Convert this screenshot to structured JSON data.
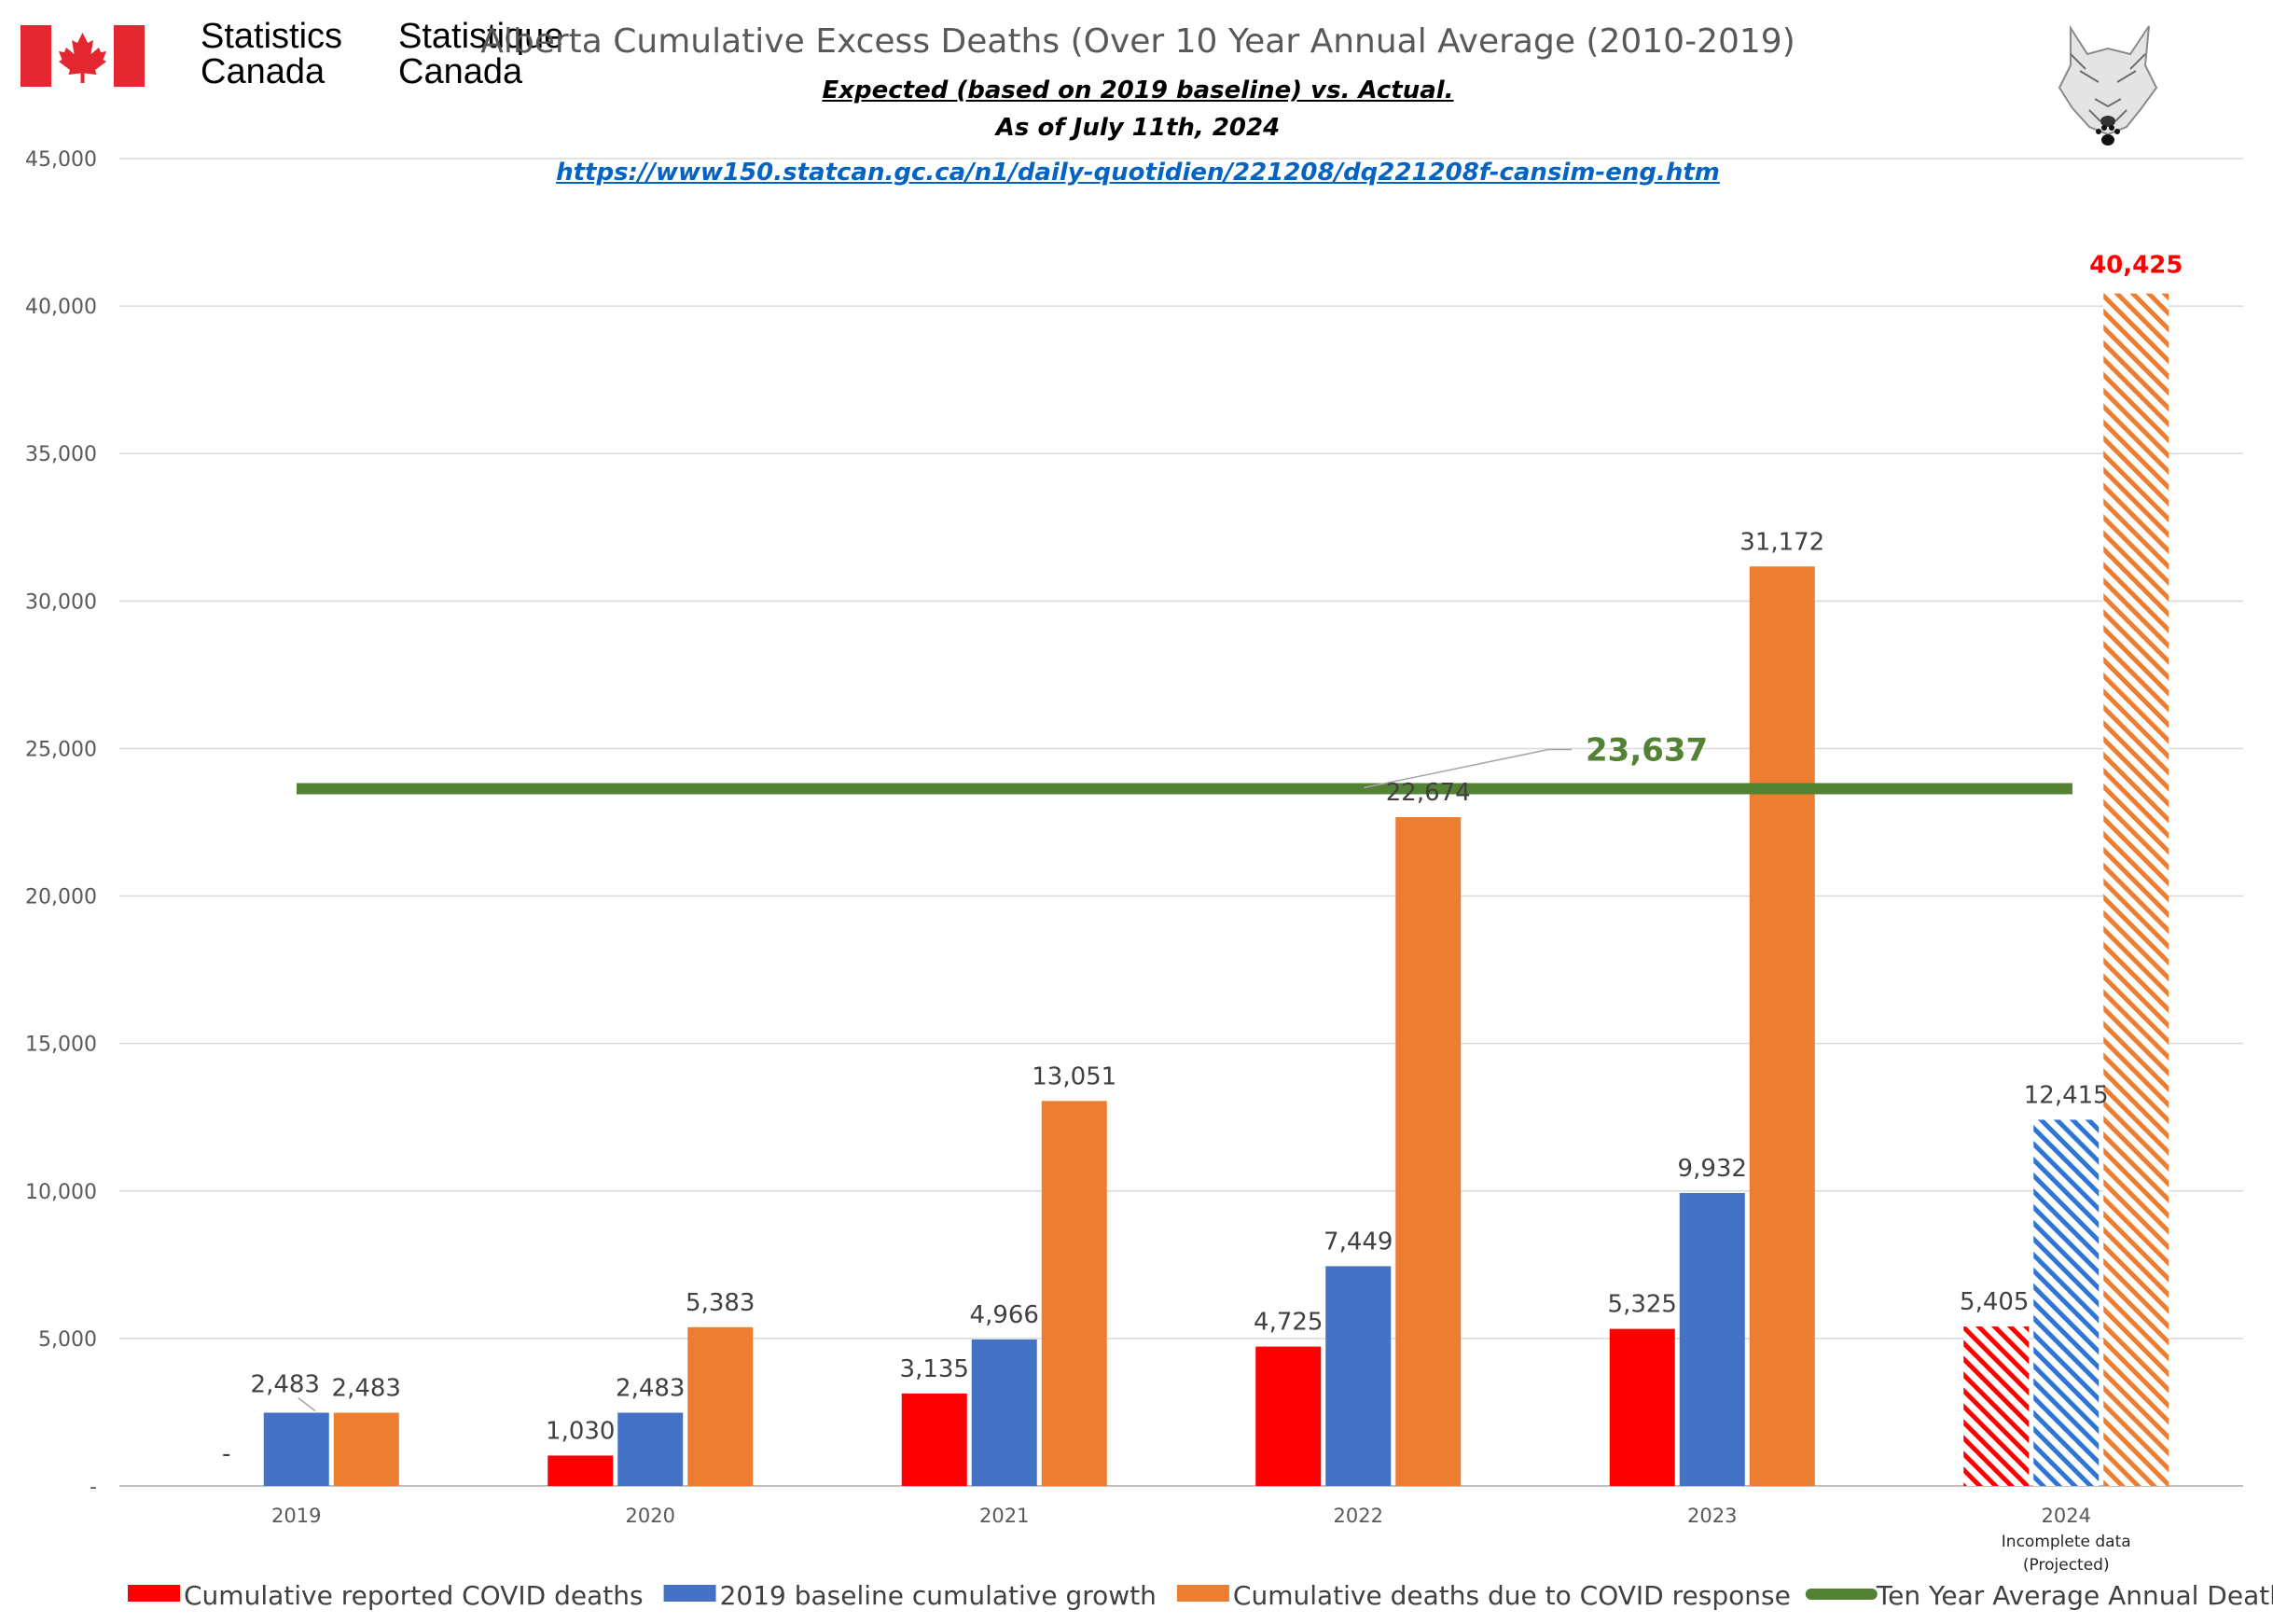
{
  "header": {
    "org_en_line1": "Statistics",
    "org_en_line2": "Canada",
    "org_fr_line1": "Statistique",
    "org_fr_line2": "Canada",
    "title": "Alberta Cumulative Excess Deaths (Over 10 Year Annual Average (2010-2019)",
    "subtitle1": "Expected (based on 2019 baseline) vs. Actual.",
    "subtitle2": "As of July 11th, 2024",
    "link": "https://www150.statcan.gc.ca/n1/daily-quotidien/221208/dq221208f-cansim-eng.htm",
    "flag_icon": "canada-flag-icon",
    "logo_icon": "wolf-logo-icon"
  },
  "chart_data": {
    "type": "bar",
    "categories": [
      "2019",
      "2020",
      "2021",
      "2022",
      "2023",
      "2024"
    ],
    "category_notes": [
      "",
      "",
      "",
      "",
      "",
      "Incomplete data\n(Projected)"
    ],
    "ylim": [
      0,
      45000
    ],
    "yticks": [
      0,
      5000,
      10000,
      15000,
      20000,
      25000,
      30000,
      35000,
      40000,
      45000
    ],
    "ytick_labels": [
      "-",
      "5,000",
      "10,000",
      "15,000",
      "20,000",
      "25,000",
      "30,000",
      "35,000",
      "40,000",
      "45,000"
    ],
    "grid": true,
    "legend_position": "bottom",
    "series": [
      {
        "name": "Cumulative reported COVID deaths",
        "color": "#ff0000",
        "values": [
          0,
          1030,
          3135,
          4725,
          5325,
          5405
        ],
        "labels": [
          "-",
          "1,030",
          "3,135",
          "4,725",
          "5,325",
          "5,405"
        ]
      },
      {
        "name": "2019 baseline cumulative growth",
        "color": "#4472c4",
        "values": [
          2483,
          2483,
          4966,
          7449,
          9932,
          12415
        ],
        "labels": [
          "2,483",
          "2,483",
          "4,966",
          "7,449",
          "9,932",
          "12,415"
        ]
      },
      {
        "name": "Cumulative deaths due to COVID response",
        "color": "#ed7d31",
        "values": [
          2483,
          5383,
          13051,
          22674,
          31172,
          40425
        ],
        "labels": [
          "2,483",
          "5,383",
          "13,051",
          "22,674",
          "31,172",
          "40,425"
        ]
      }
    ],
    "projected_category_index": 5,
    "highlight_label_color": "#ff0000",
    "reference_line": {
      "name": "Ten Year Average Annual Deaths",
      "value": 23637,
      "label": "23,637",
      "color": "#548235"
    }
  }
}
